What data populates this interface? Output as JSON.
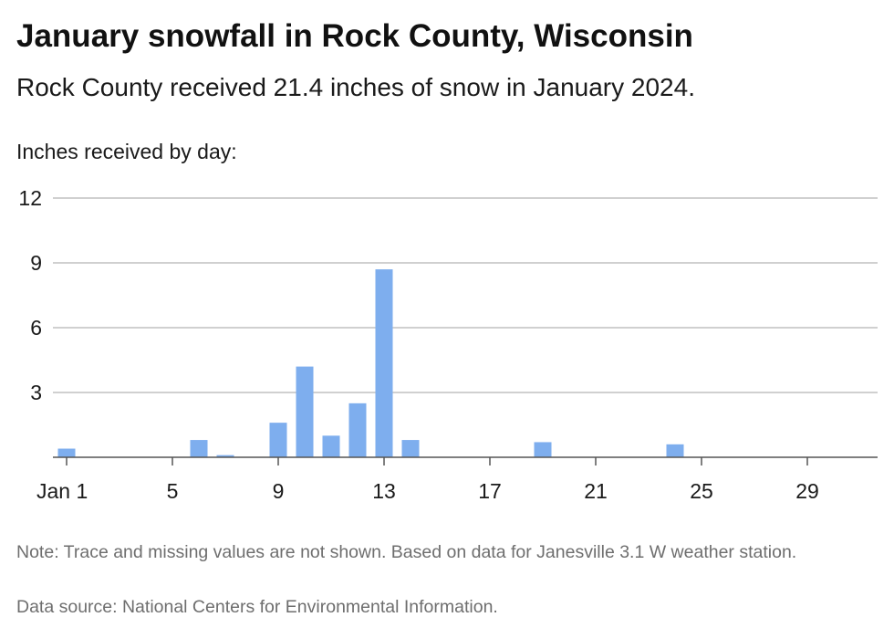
{
  "header": {
    "title": "January snowfall in Rock County, Wisconsin",
    "subtitle": "Rock County received 21.4 inches of snow in January 2024."
  },
  "footer": {
    "note": "Note: Trace and missing values are not shown. Based on data for Janesville 3.1 W weather station.",
    "source": "Data source: National Centers for Environmental Information."
  },
  "colors": {
    "bar": "#7eaeee",
    "grid": "#b5b5b5",
    "axis": "#555555"
  },
  "chart_data": {
    "type": "bar",
    "ylabel": "Inches received by day:",
    "xlabel": "",
    "ylim": [
      0,
      12
    ],
    "yticks": [
      3,
      6,
      9,
      12
    ],
    "xlim": [
      1,
      31
    ],
    "x_ticks": [
      {
        "day": 1,
        "label": "Jan 1"
      },
      {
        "day": 5,
        "label": "5"
      },
      {
        "day": 9,
        "label": "9"
      },
      {
        "day": 13,
        "label": "13"
      },
      {
        "day": 17,
        "label": "17"
      },
      {
        "day": 21,
        "label": "21"
      },
      {
        "day": 25,
        "label": "25"
      },
      {
        "day": 29,
        "label": "29"
      }
    ],
    "grid": true,
    "series": [
      {
        "x": [
          1,
          6,
          7,
          9,
          10,
          11,
          12,
          13,
          14,
          19,
          24
        ],
        "values": [
          0.4,
          0.8,
          0.1,
          1.6,
          4.2,
          1.0,
          2.5,
          8.7,
          0.8,
          0.7,
          0.6
        ]
      }
    ]
  }
}
